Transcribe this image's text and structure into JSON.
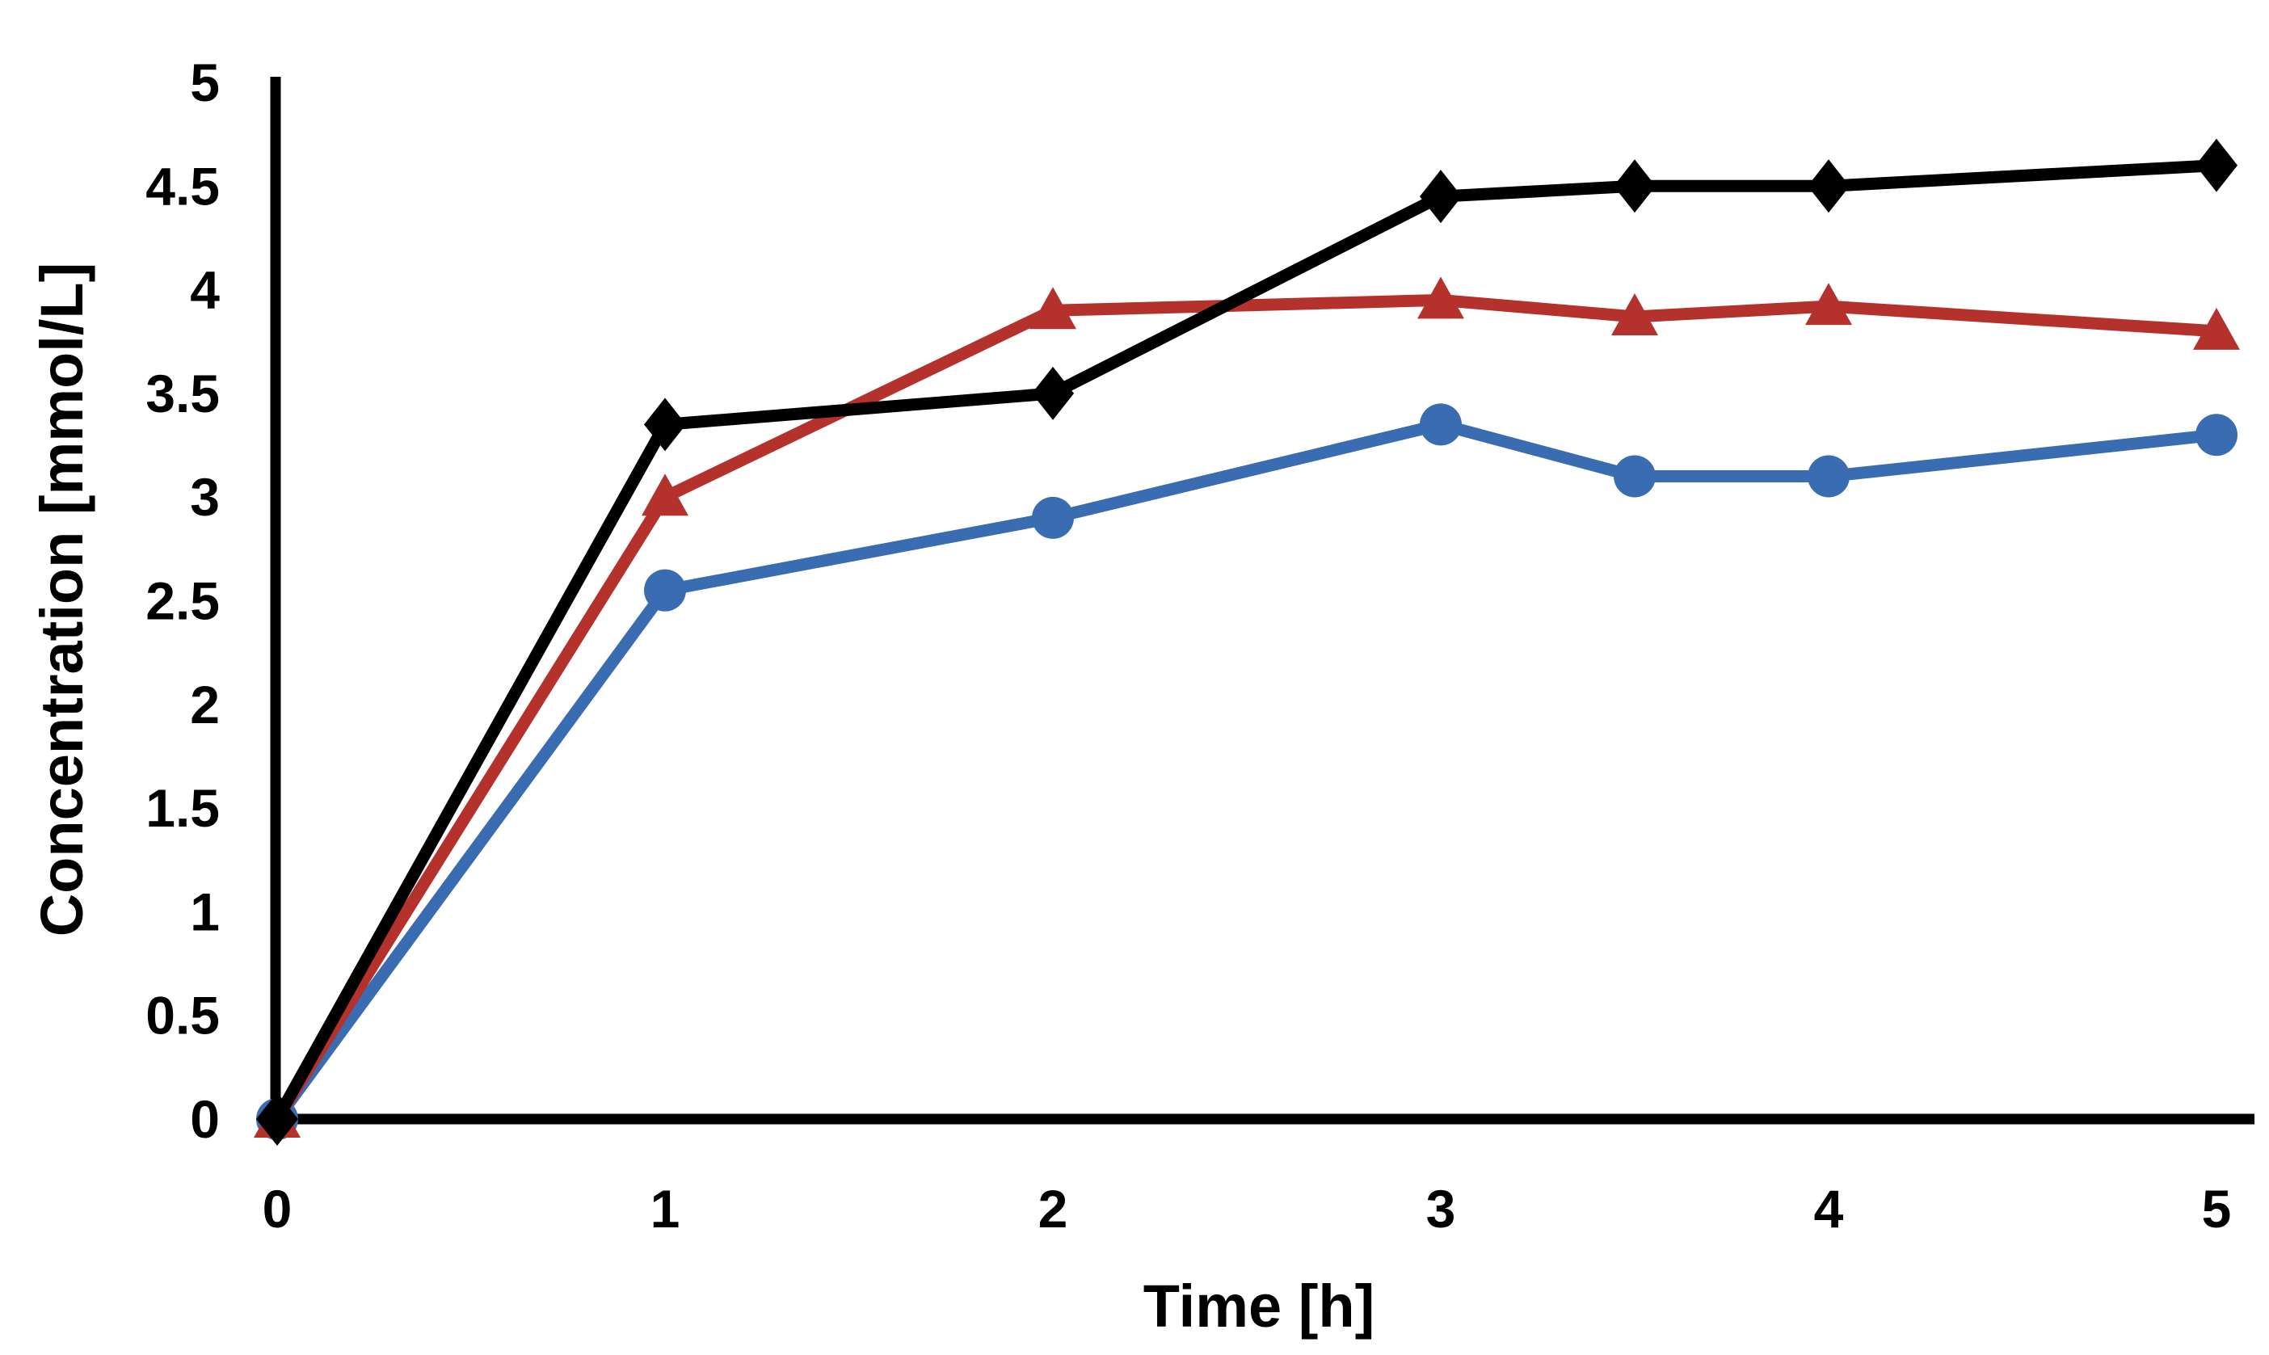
{
  "chart_data": {
    "type": "line",
    "title": "",
    "xlabel": "Time [h]",
    "ylabel": "Concentration [mmol/L]",
    "xlim": [
      0,
      5
    ],
    "ylim": [
      0,
      5
    ],
    "x_ticks": [
      0,
      1,
      2,
      3,
      4,
      5
    ],
    "y_ticks": [
      0,
      0.5,
      1,
      1.5,
      2,
      2.5,
      3,
      3.5,
      4,
      4.5,
      5
    ],
    "grid": false,
    "legend_position": "none",
    "background_color": "#FFFFFF",
    "axis_color": "#000000",
    "x": [
      0,
      1,
      2,
      3,
      3.5,
      4,
      5
    ],
    "series": [
      {
        "name": "blue-circle-series",
        "marker": "circle",
        "color": "#3A6CB1",
        "values": [
          0,
          2.55,
          2.9,
          3.35,
          3.1,
          3.1,
          3.3
        ]
      },
      {
        "name": "red-triangle-series",
        "marker": "triangle",
        "color": "#B5322C",
        "values": [
          0,
          3.0,
          3.9,
          3.95,
          3.87,
          3.92,
          3.8
        ]
      },
      {
        "name": "black-diamond-series",
        "marker": "diamond",
        "color": "#000000",
        "values": [
          0,
          3.35,
          3.5,
          4.45,
          4.5,
          4.5,
          4.6
        ]
      }
    ]
  }
}
